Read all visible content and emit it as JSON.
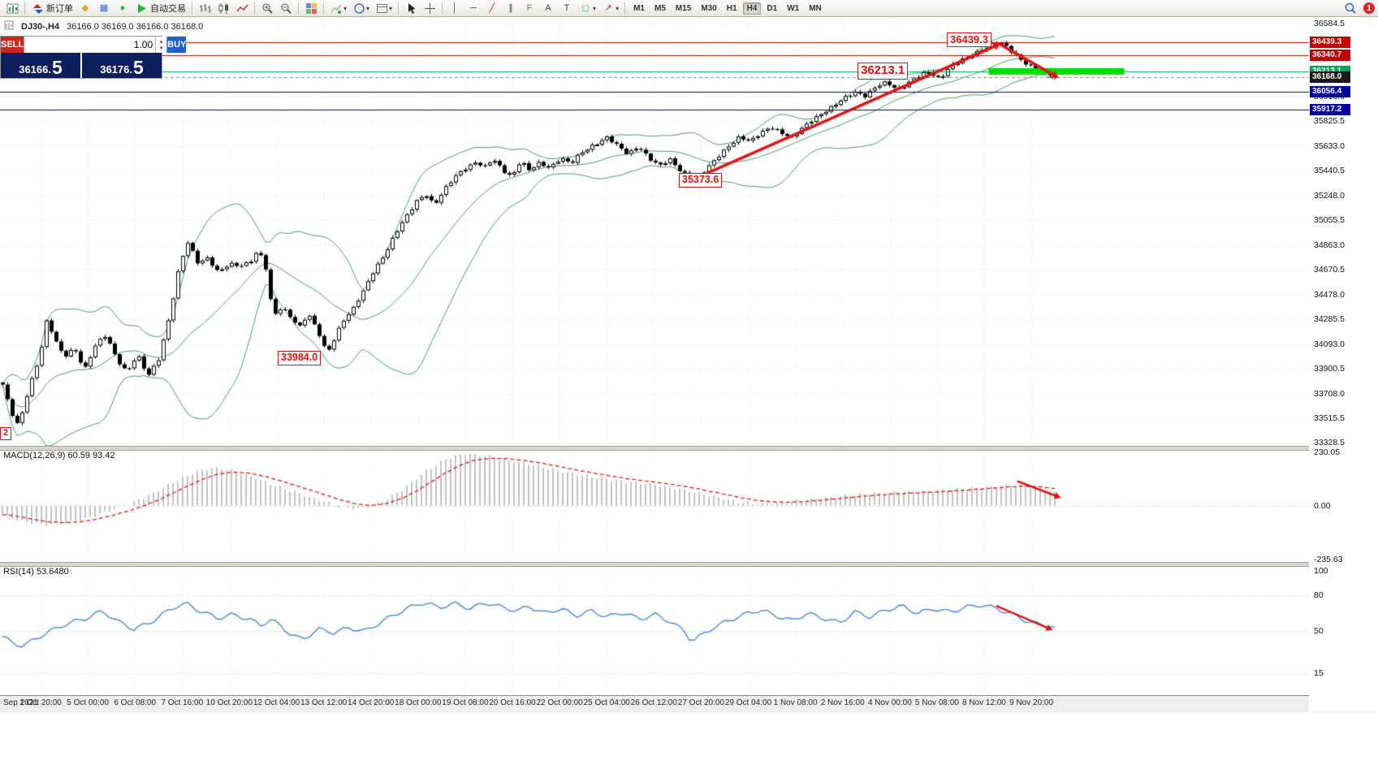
{
  "toolbar": {
    "new_order_label": "新订单",
    "autotrading_label": "自动交易",
    "timeframes": [
      "M1",
      "M5",
      "M15",
      "M30",
      "H1",
      "H4",
      "D1",
      "W1",
      "MN"
    ],
    "active_timeframe": "H4",
    "notification_count": "1"
  },
  "icons": {
    "caret": "▾",
    "profiles": "◆",
    "market_watch": "▦",
    "navigator": "●",
    "vline": "│",
    "hline": "─",
    "trendline": "╱",
    "channel": "∥",
    "fibonacci": "F",
    "text": "A",
    "label": "T",
    "shapes": "◻",
    "arrows_tool": "↗",
    "spin_up": "▴",
    "spin_down": "▾"
  },
  "chart_header": {
    "symbol": "DJ30-,H4",
    "ohlc": "36166.0 36169.0 36166.0 36168.0"
  },
  "trade_panel": {
    "sell_label": "SELL",
    "buy_label": "BUY",
    "volume": "1.00",
    "sell_price_int": "36166.",
    "sell_price_big": "5",
    "buy_price_int": "36176.",
    "buy_price_big": "5"
  },
  "annotations": {
    "peak": "36439.3",
    "pullback": "36213.1",
    "swing_low": "35373.6",
    "major_low": "33984.0",
    "left_edge": "2"
  },
  "indicators": {
    "macd_label": "MACD(12,26,9) 60.59 93.42",
    "rsi_label": "RSI(14) 53.6480"
  },
  "price_scale": {
    "plain": [
      36584.5,
      36018.0,
      35825.5,
      35633.0,
      35440.5,
      35248.0,
      35055.5,
      34863.0,
      34670.5,
      34478.0,
      34285.5,
      34093.0,
      33900.5,
      33708.0,
      33515.5,
      33328.5
    ],
    "boxed": [
      {
        "value": 36439.3,
        "color": "#c00000"
      },
      {
        "value": 36340.7,
        "color": "#c00000"
      },
      {
        "value": 36213.1,
        "color": "#00a651"
      },
      {
        "value": 36168.0,
        "color": "#1a1a1a"
      },
      {
        "value": 36056.4,
        "color": "#0000a0"
      },
      {
        "value": 35917.2,
        "color": "#0000a0"
      }
    ]
  },
  "macd_scale": [
    "230.05",
    "0.00",
    "-235.63"
  ],
  "rsi_scale": [
    "100",
    "80",
    "50",
    "15"
  ],
  "time_axis": {
    "labels": [
      "Sep 2021",
      "1 Oct 20:00",
      "5 Oct 00:00",
      "6 Oct 08:00",
      "7 Oct 16:00",
      "10 Oct 20:00",
      "12 Oct 04:00",
      "13 Oct 12:00",
      "14 Oct 20:00",
      "18 Oct 00:00",
      "19 Oct 08:00",
      "20 Oct 16:00",
      "22 Oct 00:00",
      "25 Oct 04:00",
      "26 Oct 12:00",
      "27 Oct 20:00",
      "29 Oct 04:00",
      "1 Nov 08:00",
      "2 Nov 16:00",
      "4 Nov 00:00",
      "5 Nov 08:00",
      "8 Nov 12:00",
      "9 Nov 20:00"
    ]
  },
  "chart_data": {
    "main": {
      "type": "candlestick",
      "symbol": "DJ30-",
      "timeframe": "H4",
      "candles": 217,
      "ylim": [
        33304,
        36635
      ],
      "last_close": 36168.0,
      "price_path": [
        [
          0,
          33780
        ],
        [
          0.008,
          33560
        ],
        [
          0.015,
          33451
        ],
        [
          0.025,
          33760
        ],
        [
          0.035,
          34000
        ],
        [
          0.042,
          34280
        ],
        [
          0.05,
          34120
        ],
        [
          0.058,
          33990
        ],
        [
          0.068,
          34070
        ],
        [
          0.078,
          33900
        ],
        [
          0.088,
          34080
        ],
        [
          0.098,
          34160
        ],
        [
          0.108,
          33990
        ],
        [
          0.118,
          33880
        ],
        [
          0.128,
          34010
        ],
        [
          0.138,
          33840
        ],
        [
          0.148,
          33980
        ],
        [
          0.158,
          34300
        ],
        [
          0.168,
          34700
        ],
        [
          0.176,
          34880
        ],
        [
          0.185,
          34730
        ],
        [
          0.195,
          34770
        ],
        [
          0.205,
          34650
        ],
        [
          0.215,
          34710
        ],
        [
          0.225,
          34700
        ],
        [
          0.235,
          34740
        ],
        [
          0.243,
          34830
        ],
        [
          0.25,
          34680
        ],
        [
          0.257,
          34300
        ],
        [
          0.265,
          34380
        ],
        [
          0.273,
          34320
        ],
        [
          0.282,
          34230
        ],
        [
          0.29,
          34330
        ],
        [
          0.3,
          34180
        ],
        [
          0.308,
          34020
        ],
        [
          0.315,
          34140
        ],
        [
          0.323,
          34280
        ],
        [
          0.332,
          34350
        ],
        [
          0.342,
          34490
        ],
        [
          0.352,
          34660
        ],
        [
          0.363,
          34800
        ],
        [
          0.374,
          34960
        ],
        [
          0.385,
          35100
        ],
        [
          0.395,
          35230
        ],
        [
          0.403,
          35260
        ],
        [
          0.41,
          35170
        ],
        [
          0.42,
          35290
        ],
        [
          0.43,
          35400
        ],
        [
          0.44,
          35470
        ],
        [
          0.45,
          35510
        ],
        [
          0.458,
          35460
        ],
        [
          0.466,
          35530
        ],
        [
          0.475,
          35450
        ],
        [
          0.484,
          35400
        ],
        [
          0.492,
          35520
        ],
        [
          0.5,
          35440
        ],
        [
          0.51,
          35500
        ],
        [
          0.52,
          35470
        ],
        [
          0.53,
          35545
        ],
        [
          0.54,
          35490
        ],
        [
          0.55,
          35580
        ],
        [
          0.562,
          35650
        ],
        [
          0.574,
          35700
        ],
        [
          0.584,
          35630
        ],
        [
          0.594,
          35570
        ],
        [
          0.604,
          35640
        ],
        [
          0.614,
          35540
        ],
        [
          0.624,
          35470
        ],
        [
          0.634,
          35530
        ],
        [
          0.644,
          35450
        ],
        [
          0.653,
          35390
        ],
        [
          0.66,
          35373
        ],
        [
          0.67,
          35460
        ],
        [
          0.68,
          35560
        ],
        [
          0.69,
          35640
        ],
        [
          0.7,
          35700
        ],
        [
          0.71,
          35660
        ],
        [
          0.72,
          35740
        ],
        [
          0.73,
          35790
        ],
        [
          0.74,
          35730
        ],
        [
          0.75,
          35690
        ],
        [
          0.76,
          35780
        ],
        [
          0.77,
          35850
        ],
        [
          0.78,
          35890
        ],
        [
          0.79,
          35940
        ],
        [
          0.8,
          36010
        ],
        [
          0.81,
          36060
        ],
        [
          0.82,
          36020
        ],
        [
          0.83,
          36090
        ],
        [
          0.84,
          36130
        ],
        [
          0.85,
          36080
        ],
        [
          0.86,
          36120
        ],
        [
          0.87,
          36170
        ],
        [
          0.88,
          36210
        ],
        [
          0.89,
          36160
        ],
        [
          0.9,
          36250
        ],
        [
          0.91,
          36290
        ],
        [
          0.92,
          36330
        ],
        [
          0.93,
          36390
        ],
        [
          0.94,
          36425
        ],
        [
          0.947,
          36437
        ],
        [
          0.954,
          36395
        ],
        [
          0.962,
          36340
        ],
        [
          0.97,
          36295
        ],
        [
          0.978,
          36248
        ],
        [
          0.986,
          36210
        ],
        [
          0.993,
          36188
        ],
        [
          1,
          36168
        ]
      ],
      "bollinger": {
        "period": 20,
        "deviation": 2,
        "color": "#4a9e68"
      },
      "hlines": [
        {
          "price": 36439.3,
          "color": "#cc0000",
          "w": 1
        },
        {
          "price": 36340.7,
          "color": "#cc0000",
          "w": 1
        },
        {
          "price": 36213.1,
          "color": "#00a651",
          "w": 1
        },
        {
          "price": 36168.0,
          "color": "#808080",
          "w": 1,
          "dash": true
        },
        {
          "price": 36056.4,
          "color": "#000090",
          "w": 1
        },
        {
          "price": 35917.2,
          "color": "#000090",
          "w": 1
        }
      ],
      "green_bar": {
        "x1": 0.937,
        "x2": 1.066,
        "price": 36213,
        "h": 8,
        "color": "#00dd00"
      },
      "arrows": [
        {
          "x1": 0.662,
          "p1": 35395,
          "x2": 0.949,
          "p2": 36430,
          "w": 3.5,
          "color": "#e01515"
        },
        {
          "x1": 0.949,
          "p1": 36418,
          "x2": 1.004,
          "p2": 36162,
          "w": 3.5,
          "color": "#e01515"
        }
      ]
    },
    "macd": {
      "type": "histogram+line",
      "params": "12,26,9",
      "current_macd": 60.59,
      "current_signal": 93.42,
      "ylim": [
        -245,
        245
      ],
      "path": [
        [
          0,
          -40
        ],
        [
          0.02,
          -70
        ],
        [
          0.04,
          -85
        ],
        [
          0.06,
          -75
        ],
        [
          0.08,
          -55
        ],
        [
          0.1,
          -25
        ],
        [
          0.12,
          5
        ],
        [
          0.14,
          45
        ],
        [
          0.16,
          95
        ],
        [
          0.18,
          140
        ],
        [
          0.2,
          165
        ],
        [
          0.22,
          150
        ],
        [
          0.24,
          120
        ],
        [
          0.26,
          85
        ],
        [
          0.28,
          55
        ],
        [
          0.3,
          25
        ],
        [
          0.32,
          -5
        ],
        [
          0.34,
          -15
        ],
        [
          0.36,
          15
        ],
        [
          0.38,
          70
        ],
        [
          0.4,
          140
        ],
        [
          0.42,
          200
        ],
        [
          0.44,
          225
        ],
        [
          0.46,
          215
        ],
        [
          0.48,
          196
        ],
        [
          0.5,
          180
        ],
        [
          0.52,
          160
        ],
        [
          0.54,
          140
        ],
        [
          0.56,
          125
        ],
        [
          0.58,
          110
        ],
        [
          0.6,
          100
        ],
        [
          0.62,
          90
        ],
        [
          0.64,
          75
        ],
        [
          0.66,
          55
        ],
        [
          0.68,
          35
        ],
        [
          0.7,
          15
        ],
        [
          0.72,
          8
        ],
        [
          0.74,
          12
        ],
        [
          0.76,
          22
        ],
        [
          0.78,
          32
        ],
        [
          0.8,
          42
        ],
        [
          0.82,
          50
        ],
        [
          0.84,
          55
        ],
        [
          0.86,
          58
        ],
        [
          0.88,
          62
        ],
        [
          0.9,
          68
        ],
        [
          0.92,
          75
        ],
        [
          0.94,
          82
        ],
        [
          0.96,
          90
        ],
        [
          0.98,
          80
        ],
        [
          1,
          60.59
        ]
      ],
      "bar_color": "#c2c2c2",
      "signal_color": "#e01515",
      "arrow": {
        "x1": 0.965,
        "v1": 105,
        "x2": 1.006,
        "v2": 33,
        "w": 2.5,
        "color": "#e01515"
      }
    },
    "rsi": {
      "type": "line",
      "period": 14,
      "current": 53.648,
      "ylim": [
        -3,
        105
      ],
      "levels": [
        80,
        50,
        15
      ],
      "line_color": "#3d7fd6",
      "path": [
        [
          0,
          46
        ],
        [
          0.01,
          40
        ],
        [
          0.02,
          38
        ],
        [
          0.04,
          48
        ],
        [
          0.06,
          56
        ],
        [
          0.08,
          61
        ],
        [
          0.095,
          67
        ],
        [
          0.11,
          58
        ],
        [
          0.125,
          52
        ],
        [
          0.14,
          57
        ],
        [
          0.15,
          63
        ],
        [
          0.165,
          71
        ],
        [
          0.175,
          73
        ],
        [
          0.19,
          66
        ],
        [
          0.205,
          61
        ],
        [
          0.22,
          64
        ],
        [
          0.235,
          60
        ],
        [
          0.245,
          55
        ],
        [
          0.255,
          60
        ],
        [
          0.265,
          54
        ],
        [
          0.275,
          47
        ],
        [
          0.285,
          43
        ],
        [
          0.3,
          52
        ],
        [
          0.315,
          49
        ],
        [
          0.33,
          53
        ],
        [
          0.345,
          50
        ],
        [
          0.36,
          58
        ],
        [
          0.375,
          65
        ],
        [
          0.39,
          71
        ],
        [
          0.4,
          74
        ],
        [
          0.415,
          70
        ],
        [
          0.43,
          73
        ],
        [
          0.445,
          69
        ],
        [
          0.46,
          74
        ],
        [
          0.475,
          70
        ],
        [
          0.49,
          67
        ],
        [
          0.5,
          71
        ],
        [
          0.515,
          65
        ],
        [
          0.53,
          69
        ],
        [
          0.545,
          63
        ],
        [
          0.56,
          67
        ],
        [
          0.575,
          62
        ],
        [
          0.59,
          66
        ],
        [
          0.605,
          60
        ],
        [
          0.62,
          64
        ],
        [
          0.635,
          58
        ],
        [
          0.648,
          50
        ],
        [
          0.655,
          42
        ],
        [
          0.665,
          47
        ],
        [
          0.675,
          53
        ],
        [
          0.69,
          59
        ],
        [
          0.705,
          64
        ],
        [
          0.72,
          68
        ],
        [
          0.735,
          63
        ],
        [
          0.75,
          59
        ],
        [
          0.765,
          65
        ],
        [
          0.78,
          61
        ],
        [
          0.795,
          57
        ],
        [
          0.81,
          66
        ],
        [
          0.825,
          62
        ],
        [
          0.84,
          68
        ],
        [
          0.855,
          71
        ],
        [
          0.87,
          65
        ],
        [
          0.885,
          69
        ],
        [
          0.9,
          66
        ],
        [
          0.915,
          70
        ],
        [
          0.93,
          72
        ],
        [
          0.945,
          69
        ],
        [
          0.96,
          64
        ],
        [
          0.975,
          58
        ],
        [
          0.99,
          55
        ],
        [
          1,
          53.648
        ]
      ],
      "arrow": {
        "x1": 0.945,
        "v1": 71,
        "x2": 0.998,
        "v2": 51,
        "w": 2.5,
        "color": "#e01515"
      }
    }
  }
}
